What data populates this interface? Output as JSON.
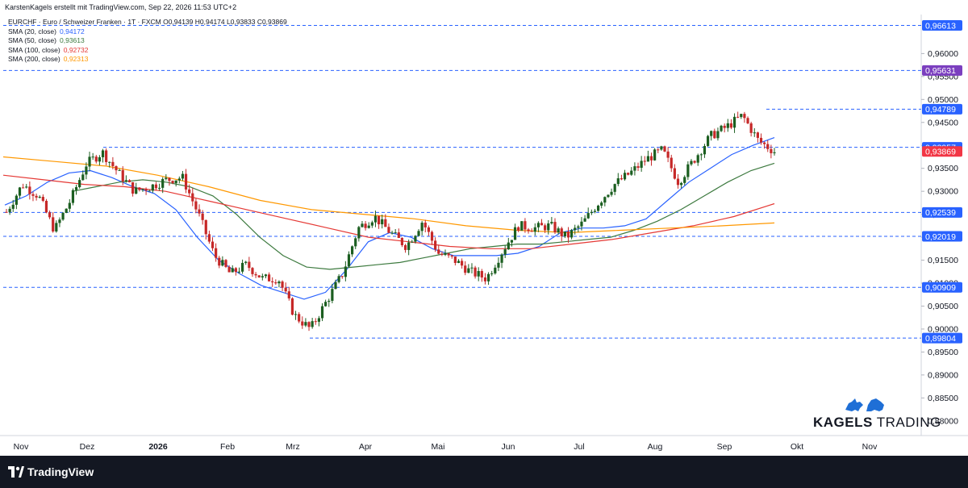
{
  "header": {
    "credit": "KarstenKagels erstellt mit TradingView.com, Sep 22, 2026 11:53 UTC+2",
    "symbol_line": "EURCHF · Euro / Schweizer Franken · 1T · FXCM O0,94139 H0,94174 L0,93833 C0,93869"
  },
  "indicators": [
    {
      "label": "SMA (20, close)",
      "value": "0,94172",
      "color": "#2962ff"
    },
    {
      "label": "SMA (50, close)",
      "value": "0,93613",
      "color": "#3d7a3f"
    },
    {
      "label": "SMA (100, close)",
      "value": "0,92732",
      "color": "#e53935"
    },
    {
      "label": "SMA (200, close)",
      "value": "0,92313",
      "color": "#ff9800"
    }
  ],
  "footer": {
    "brand": "TradingView"
  },
  "watermark": {
    "brand_bold": "KAGELS",
    "brand_light": "TRADING"
  },
  "chart_data": {
    "type": "line",
    "currency_label": "CHF",
    "ylim": [
      0.8768,
      0.9685
    ],
    "y_ticks": [
      "0,96000",
      "0,95500",
      "0,95000",
      "0,94500",
      "0,94000",
      "0,93500",
      "0,93000",
      "0,92500",
      "0,92000",
      "0,91500",
      "0,91000",
      "0,90500",
      "0,90000",
      "0,89500",
      "0,89000",
      "0,88500",
      "0,88000"
    ],
    "x_tick_labels": [
      "Nov",
      "Dez",
      "2026",
      "Feb",
      "Mrz",
      "Apr",
      "Mai",
      "Jun",
      "Jul",
      "Aug",
      "Sep",
      "Okt",
      "Nov"
    ],
    "horizontal_levels": [
      "0,96613",
      "0,95631",
      "0,94789",
      "0,93957",
      "0,92539",
      "0,92019",
      "0,90909",
      "0,89804"
    ],
    "price_tags": [
      {
        "label": "0,96613",
        "color": "#2962ff"
      },
      {
        "label": "0,95631",
        "color": "#7b3fbf"
      },
      {
        "label": "0,94789",
        "color": "#2962ff"
      },
      {
        "label": "0,93957",
        "color": "#2962ff"
      },
      {
        "label": "0,93869",
        "color": "#f23645"
      },
      {
        "label": "0,92539",
        "color": "#2962ff"
      },
      {
        "label": "0,92019",
        "color": "#2962ff"
      },
      {
        "label": "0,90909",
        "color": "#2962ff"
      },
      {
        "label": "0,89804",
        "color": "#2962ff"
      }
    ],
    "candle_colors": {
      "up": "#1b5e20",
      "down": "#c62828"
    },
    "price_path": [
      {
        "m": "Nov",
        "v": 0.9255
      },
      {
        "m": "Nov",
        "v": 0.9315
      },
      {
        "m": "Nov",
        "v": 0.929
      },
      {
        "m": "Nov",
        "v": 0.9215
      },
      {
        "m": "Nov",
        "v": 0.928
      },
      {
        "m": "Dez",
        "v": 0.936
      },
      {
        "m": "Dez",
        "v": 0.9385
      },
      {
        "m": "Dez",
        "v": 0.934
      },
      {
        "m": "Dez",
        "v": 0.93
      },
      {
        "m": "2026",
        "v": 0.931
      },
      {
        "m": "2026",
        "v": 0.9325
      },
      {
        "m": "2026",
        "v": 0.933
      },
      {
        "m": "2026",
        "v": 0.925
      },
      {
        "m": "Feb",
        "v": 0.916
      },
      {
        "m": "Feb",
        "v": 0.912
      },
      {
        "m": "Feb",
        "v": 0.914
      },
      {
        "m": "Feb",
        "v": 0.911
      },
      {
        "m": "Mrz",
        "v": 0.911
      },
      {
        "m": "Mrz",
        "v": 0.903
      },
      {
        "m": "Mrz",
        "v": 0.9
      },
      {
        "m": "Mrz",
        "v": 0.906
      },
      {
        "m": "Apr",
        "v": 0.912
      },
      {
        "m": "Apr",
        "v": 0.922
      },
      {
        "m": "Apr",
        "v": 0.9245
      },
      {
        "m": "Apr",
        "v": 0.921
      },
      {
        "m": "Apr",
        "v": 0.918
      },
      {
        "m": "Mai",
        "v": 0.9235
      },
      {
        "m": "Mai",
        "v": 0.9165
      },
      {
        "m": "Mai",
        "v": 0.915
      },
      {
        "m": "Mai",
        "v": 0.9125
      },
      {
        "m": "Jun",
        "v": 0.911
      },
      {
        "m": "Jun",
        "v": 0.917
      },
      {
        "m": "Jun",
        "v": 0.9225
      },
      {
        "m": "Jun",
        "v": 0.922
      },
      {
        "m": "Jun",
        "v": 0.9225
      },
      {
        "m": "Jul",
        "v": 0.92
      },
      {
        "m": "Jul",
        "v": 0.923
      },
      {
        "m": "Jul",
        "v": 0.9275
      },
      {
        "m": "Jul",
        "v": 0.9315
      },
      {
        "m": "Aug",
        "v": 0.934
      },
      {
        "m": "Aug",
        "v": 0.937
      },
      {
        "m": "Aug",
        "v": 0.939
      },
      {
        "m": "Aug",
        "v": 0.932
      },
      {
        "m": "Aug",
        "v": 0.937
      },
      {
        "m": "Sep",
        "v": 0.942
      },
      {
        "m": "Sep",
        "v": 0.944
      },
      {
        "m": "Sep",
        "v": 0.9465
      },
      {
        "m": "Sep",
        "v": 0.941
      },
      {
        "m": "Sep",
        "v": 0.9387
      }
    ],
    "sma_lines": [
      {
        "name": "SMA (20, close)",
        "color": "#2962ff",
        "values": [
          0.927,
          0.929,
          0.932,
          0.934,
          0.9345,
          0.933,
          0.931,
          0.9295,
          0.926,
          0.92,
          0.915,
          0.912,
          0.9095,
          0.908,
          0.9065,
          0.908,
          0.913,
          0.919,
          0.921,
          0.92,
          0.9175,
          0.916,
          0.916,
          0.916,
          0.9165,
          0.918,
          0.921,
          0.922,
          0.922,
          0.9225,
          0.924,
          0.928,
          0.932,
          0.935,
          0.938,
          0.94,
          0.9417
        ]
      },
      {
        "name": "SMA (50, close)",
        "color": "#3d7a3f",
        "values": [
          0.93,
          0.931,
          0.932,
          0.9325,
          0.932,
          0.931,
          0.929,
          0.925,
          0.92,
          0.916,
          0.9135,
          0.913,
          0.9135,
          0.914,
          0.9145,
          0.9155,
          0.9165,
          0.9175,
          0.918,
          0.9185,
          0.9185,
          0.919,
          0.9195,
          0.92,
          0.9215,
          0.9235,
          0.926,
          0.929,
          0.932,
          0.9345,
          0.9361
        ]
      },
      {
        "name": "SMA (100, close)",
        "color": "#e53935",
        "values": [
          0.9335,
          0.9325,
          0.9315,
          0.931,
          0.93,
          0.928,
          0.926,
          0.924,
          0.922,
          0.92,
          0.919,
          0.918,
          0.9175,
          0.9175,
          0.9185,
          0.9195,
          0.921,
          0.9225,
          0.9245,
          0.9273
        ]
      },
      {
        "name": "SMA (200, close)",
        "color": "#ff9800",
        "values": [
          0.9375,
          0.9365,
          0.9355,
          0.9335,
          0.931,
          0.928,
          0.926,
          0.925,
          0.924,
          0.9225,
          0.9215,
          0.921,
          0.9215,
          0.922,
          0.9225,
          0.9231
        ]
      }
    ]
  }
}
